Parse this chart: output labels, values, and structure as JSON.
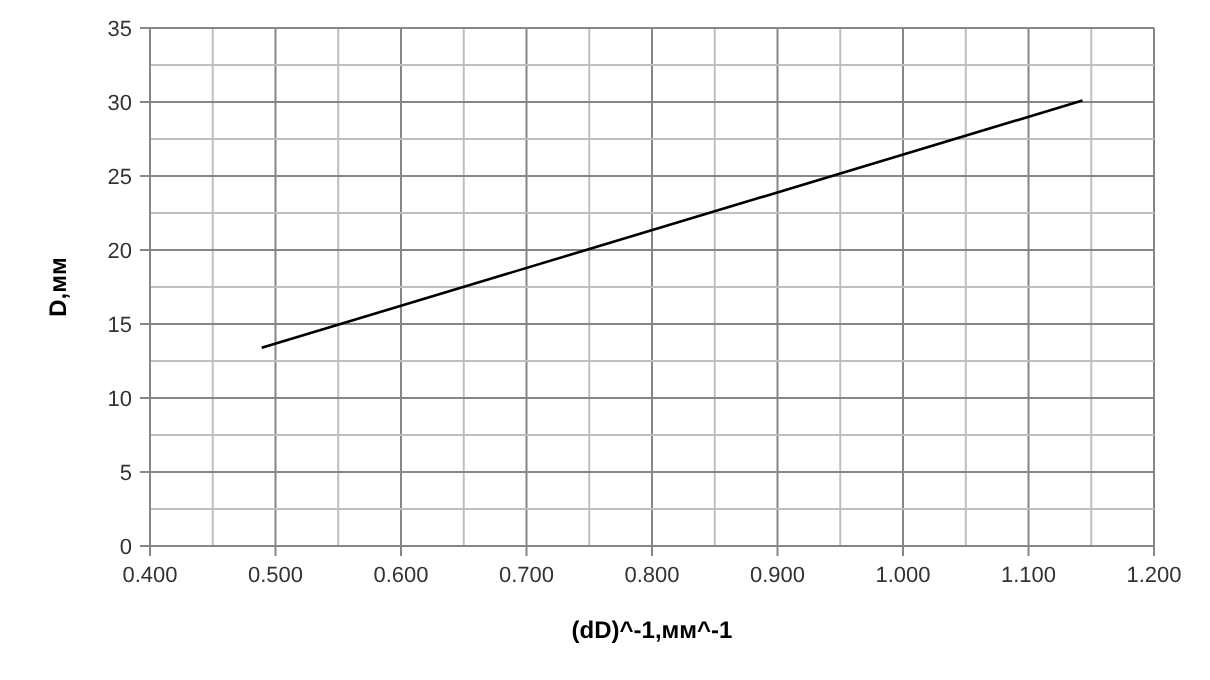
{
  "chart_data": {
    "type": "line",
    "xlabel": "(dD)^-1,мм^-1",
    "ylabel": "D,мм",
    "series": [
      {
        "color": "#000000",
        "x": [
          0.489,
          1.143
        ],
        "values": [
          13.4,
          30.1
        ]
      }
    ],
    "xlim": [
      0.4,
      1.2
    ],
    "xticks": [
      {
        "value": 0.4,
        "label": "0.400"
      },
      {
        "value": 0.45,
        "label": null
      },
      {
        "value": 0.5,
        "label": "0.500"
      },
      {
        "value": 0.55,
        "label": null
      },
      {
        "value": 0.6,
        "label": "0.600"
      },
      {
        "value": 0.65,
        "label": null
      },
      {
        "value": 0.7,
        "label": "0.700"
      },
      {
        "value": 0.75,
        "label": null
      },
      {
        "value": 0.8,
        "label": "0.800"
      },
      {
        "value": 0.85,
        "label": null
      },
      {
        "value": 0.9,
        "label": "0.900"
      },
      {
        "value": 0.95,
        "label": null
      },
      {
        "value": 1.0,
        "label": "1.000"
      },
      {
        "value": 1.05,
        "label": null
      },
      {
        "value": 1.1,
        "label": "1.100"
      },
      {
        "value": 1.15,
        "label": null
      },
      {
        "value": 1.2,
        "label": "1.200"
      }
    ],
    "ylim": [
      0,
      35
    ],
    "yticks": [
      0,
      {
        "value": 2.5,
        "label": null
      },
      5,
      {
        "value": 7.5,
        "label": null
      },
      10,
      {
        "value": 12.5,
        "label": null
      },
      15,
      {
        "value": 17.5,
        "label": null
      },
      20,
      {
        "value": 22.5,
        "label": null
      },
      25,
      {
        "value": 27.5,
        "label": null
      },
      30,
      {
        "value": 32.5,
        "label": null
      },
      35
    ],
    "grid": true,
    "marker": "none",
    "line_style": "solid"
  }
}
